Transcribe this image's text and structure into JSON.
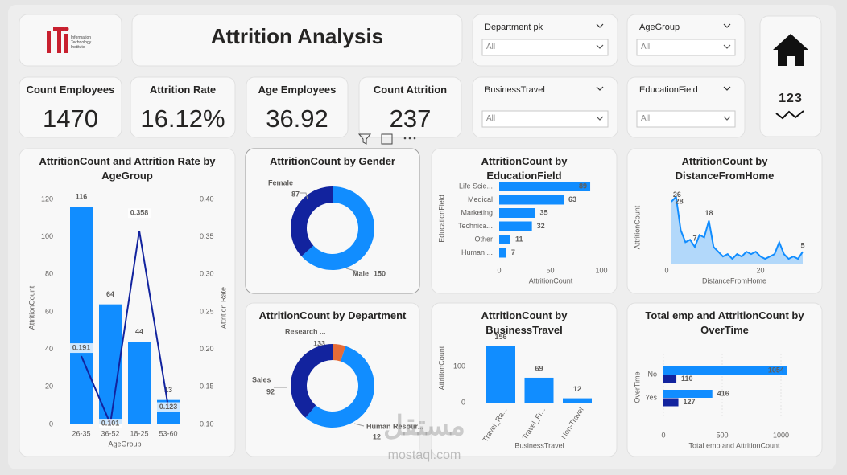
{
  "header": {
    "title": "Attrition Analysis",
    "logo_text": "Information Technology Institute",
    "nav_label": "123",
    "watermark": "mostaql.com",
    "watermark_ar": "مستقل"
  },
  "kpis": [
    {
      "label": "Count Employees",
      "value": 1470
    },
    {
      "label": "Attrition Rate",
      "value": {
        "value": 16.12,
        "label": "16.12%"
      }
    },
    {
      "label": "Age Employees",
      "value": 36.92
    },
    {
      "label": "Count Attrition",
      "value": 237
    }
  ],
  "slicers": [
    {
      "title": "Department pk",
      "value": "All"
    },
    {
      "title": "AgeGroup",
      "value": "All"
    },
    {
      "title": "BusinessTravel",
      "value": "All"
    },
    {
      "title": "EducationField",
      "value": "All"
    }
  ],
  "chart_data": [
    {
      "type": "combo",
      "title": "AttritionCount and Attrition Rate by AgeGroup",
      "categories": [
        "26-35",
        "36-52",
        "18-25",
        "53-60"
      ],
      "series": [
        {
          "name": "AttritionCount",
          "color": "#118DFF",
          "values": [
            116,
            64,
            44,
            13
          ]
        },
        {
          "name": "Attrition Rate",
          "color": "#12239E",
          "axis": "y2",
          "values": [
            0.191,
            0.101,
            0.358,
            0.123
          ]
        }
      ],
      "ylim": [
        0,
        120
      ],
      "yticks": [
        0,
        20,
        40,
        60,
        80,
        100,
        120
      ],
      "y2lim": [
        0.1,
        0.4
      ],
      "y2ticks": [
        {
          "value": 0.1,
          "label": "0.10"
        },
        {
          "value": 0.15,
          "label": "0.15"
        },
        {
          "value": 0.2,
          "label": "0.20"
        },
        {
          "value": 0.25,
          "label": "0.25"
        },
        {
          "value": 0.3,
          "label": "0.30"
        },
        {
          "value": 0.35,
          "label": "0.35"
        },
        {
          "value": 0.4,
          "label": "0.40"
        }
      ],
      "xlabel": "AgeGroup",
      "ylabel": "AttritionCount",
      "y2label": "Attrition Rate"
    },
    {
      "type": "donut",
      "title": "AttritionCount by Gender",
      "categories": [
        "Male",
        "Female"
      ],
      "values": [
        150,
        87
      ],
      "colors": [
        "#118DFF",
        "#12239E"
      ]
    },
    {
      "type": "hbar",
      "title": "AttritionCount by EducationField",
      "categories": [
        "Life Scie...",
        "Medical",
        "Marketing",
        "Technica...",
        "Other",
        "Human ..."
      ],
      "values": [
        89,
        63,
        35,
        32,
        11,
        7
      ],
      "color": "#118DFF",
      "xlim": [
        0,
        100
      ],
      "xticks": [
        0,
        50,
        100
      ],
      "xlabel": "AttritionCount",
      "ylabel": "EducationField"
    },
    {
      "type": "area",
      "title": "AttritionCount by DistanceFromHome",
      "x": [
        1,
        2,
        3,
        4,
        5,
        6,
        7,
        8,
        9,
        10,
        11,
        12,
        13,
        14,
        15,
        16,
        17,
        18,
        19,
        20,
        21,
        22,
        23,
        24,
        25,
        26,
        27,
        28,
        29
      ],
      "values": [
        26,
        28,
        14,
        9,
        10,
        7,
        12,
        11,
        18,
        7,
        5,
        3,
        4,
        2,
        4,
        3,
        5,
        4,
        5,
        3,
        2,
        3,
        4,
        9,
        4,
        2,
        3,
        2,
        5
      ],
      "color": "#118DFF",
      "xlim": [
        0,
        29
      ],
      "ylim": [
        0,
        30
      ],
      "xticks": [
        0,
        20
      ],
      "xlabel": "DistanceFromHome",
      "ylabel": "AttritionCount"
    },
    {
      "type": "donut",
      "title": "AttritionCount by Department",
      "categories": [
        "Human Resour...",
        "Research ...",
        "Sales"
      ],
      "values": [
        12,
        133,
        92
      ],
      "colors": [
        "#E66C37",
        "#118DFF",
        "#12239E"
      ]
    },
    {
      "type": "bar",
      "title": "AttritionCount by BusinessTravel",
      "categories": [
        "Travel_Ra...",
        "Travel_Fr...",
        "Non-Travel"
      ],
      "values": [
        156,
        69,
        12
      ],
      "color": "#118DFF",
      "ylim": [
        0,
        170
      ],
      "yticks": [
        0,
        100
      ],
      "xlabel": "BusinessTravel",
      "ylabel": "AttritionCount"
    },
    {
      "type": "hgroup",
      "title": "Total emp and AttritionCount by OverTime",
      "categories": [
        "No",
        "Yes"
      ],
      "series": [
        {
          "name": "Total emp",
          "color": "#118DFF",
          "values": [
            1054,
            416
          ]
        },
        {
          "name": "AttritionCount",
          "color": "#12239E",
          "values": [
            110,
            127
          ]
        }
      ],
      "xlim": [
        0,
        1100
      ],
      "xticks": [
        0,
        500,
        1000
      ],
      "xlabel": "Total emp and AttritionCount",
      "ylabel": "OverTime"
    }
  ]
}
